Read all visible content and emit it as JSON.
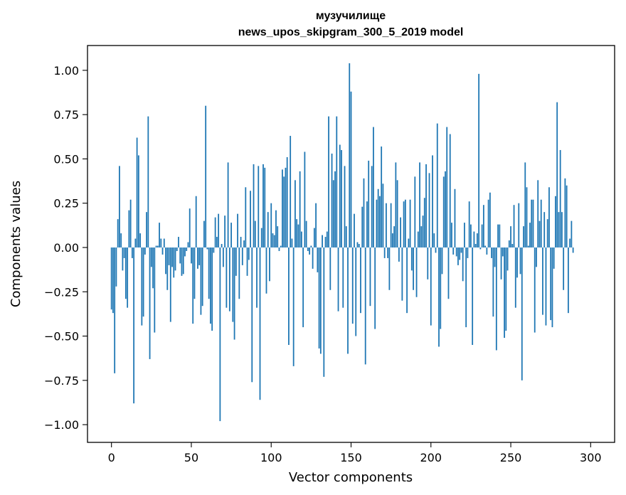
{
  "chart_data": {
    "type": "bar",
    "title": "музучилище",
    "subtitle": "news_upos_skipgram_300_5_2019 model",
    "xlabel": "Vector components",
    "ylabel": "Components values",
    "xlim": [
      -15,
      315
    ],
    "ylim": [
      -1.1,
      1.14
    ],
    "xticks": [
      0,
      50,
      100,
      150,
      200,
      250,
      300
    ],
    "yticks": [
      -1.0,
      -0.75,
      -0.5,
      -0.25,
      0.0,
      0.25,
      0.5,
      0.75,
      1.0
    ],
    "ytick_labels": [
      "−1.00",
      "−0.75",
      "−0.50",
      "−0.25",
      "0.00",
      "0.25",
      "0.50",
      "0.75",
      "1.00"
    ],
    "bar_color": "#1f77b4",
    "grid": false,
    "values": [
      -0.35,
      -0.37,
      -0.71,
      -0.22,
      0.16,
      0.46,
      0.08,
      -0.13,
      -0.06,
      -0.29,
      -0.34,
      0.21,
      0.27,
      -0.06,
      -0.88,
      0.05,
      0.62,
      0.52,
      0.08,
      -0.44,
      -0.39,
      -0.04,
      0.2,
      0.74,
      -0.63,
      -0.11,
      -0.23,
      -0.48,
      0.01,
      0.01,
      0.14,
      0.05,
      -0.04,
      0.05,
      -0.15,
      -0.24,
      -0.1,
      -0.42,
      -0.11,
      -0.17,
      -0.13,
      -0.02,
      0.06,
      -0.09,
      -0.16,
      -0.15,
      -0.05,
      -0.02,
      0.03,
      0.22,
      -0.09,
      -0.43,
      -0.29,
      0.29,
      -0.12,
      -0.1,
      -0.38,
      -0.33,
      0.15,
      0.8,
      -0.01,
      -0.29,
      -0.43,
      -0.47,
      -0.03,
      0.17,
      0.06,
      0.19,
      -0.98,
      0.02,
      -0.11,
      0.18,
      -0.34,
      0.48,
      -0.36,
      0.14,
      -0.42,
      -0.52,
      -0.16,
      0.19,
      -0.29,
      0.06,
      -0.1,
      0.04,
      0.34,
      -0.16,
      -0.07,
      0.32,
      -0.76,
      0.47,
      0.15,
      -0.34,
      0.46,
      -0.86,
      0.11,
      0.47,
      0.45,
      -0.26,
      0.2,
      -0.19,
      0.25,
      0.08,
      0.07,
      0.21,
      0.12,
      -0.02,
      0.01,
      0.44,
      0.4,
      0.45,
      0.51,
      -0.55,
      0.63,
      0.05,
      -0.67,
      0.38,
      0.16,
      0.13,
      0.43,
      0.09,
      -0.45,
      0.54,
      0.15,
      -0.02,
      -0.04,
      0.01,
      -0.12,
      0.11,
      0.25,
      -0.14,
      -0.57,
      -0.6,
      0.07,
      -0.73,
      0.06,
      0.09,
      0.74,
      -0.24,
      0.53,
      0.38,
      0.43,
      0.74,
      -0.36,
      0.58,
      0.55,
      -0.34,
      0.46,
      0.12,
      -0.6,
      1.04,
      0.88,
      -0.43,
      0.19,
      -0.5,
      0.03,
      0.02,
      -0.37,
      0.23,
      0.39,
      -0.66,
      0.26,
      0.49,
      -0.33,
      0.46,
      0.68,
      -0.46,
      0.27,
      0.33,
      0.29,
      0.57,
      0.36,
      -0.06,
      0.25,
      -0.06,
      -0.24,
      0.25,
      0.08,
      0.12,
      0.48,
      0.38,
      -0.08,
      0.17,
      -0.3,
      0.26,
      0.27,
      -0.37,
      0.05,
      0.27,
      -0.13,
      -0.24,
      0.4,
      -0.28,
      0.09,
      0.48,
      0.12,
      0.18,
      0.28,
      0.47,
      -0.18,
      0.42,
      -0.44,
      0.52,
      0.08,
      -0.03,
      0.7,
      -0.56,
      -0.46,
      -0.15,
      0.4,
      0.43,
      0.68,
      -0.29,
      0.64,
      0.14,
      -0.04,
      0.33,
      -0.05,
      -0.1,
      -0.07,
      -0.03,
      -0.19,
      0.14,
      -0.45,
      -0.06,
      0.26,
      0.13,
      -0.55,
      0.09,
      0.02,
      0.08,
      0.98,
      -0.01,
      0.13,
      0.24,
      0.01,
      -0.04,
      0.27,
      0.31,
      -0.06,
      -0.39,
      -0.11,
      -0.58,
      0.13,
      0.13,
      -0.18,
      -0.05,
      -0.51,
      -0.47,
      -0.13,
      0.04,
      0.12,
      0.02,
      0.24,
      -0.34,
      -0.17,
      0.25,
      -0.15,
      -0.75,
      0.12,
      0.48,
      0.34,
      0.01,
      0.14,
      0.27,
      0.27,
      -0.48,
      -0.11,
      0.38,
      0.15,
      0.27,
      -0.38,
      0.2,
      -0.44,
      0.16,
      0.34,
      -0.41,
      -0.45,
      -0.12,
      0.29,
      0.82,
      0.2,
      0.55,
      0.2,
      -0.24,
      0.39,
      0.35,
      -0.37,
      0.05,
      0.15,
      -0.03
    ]
  }
}
